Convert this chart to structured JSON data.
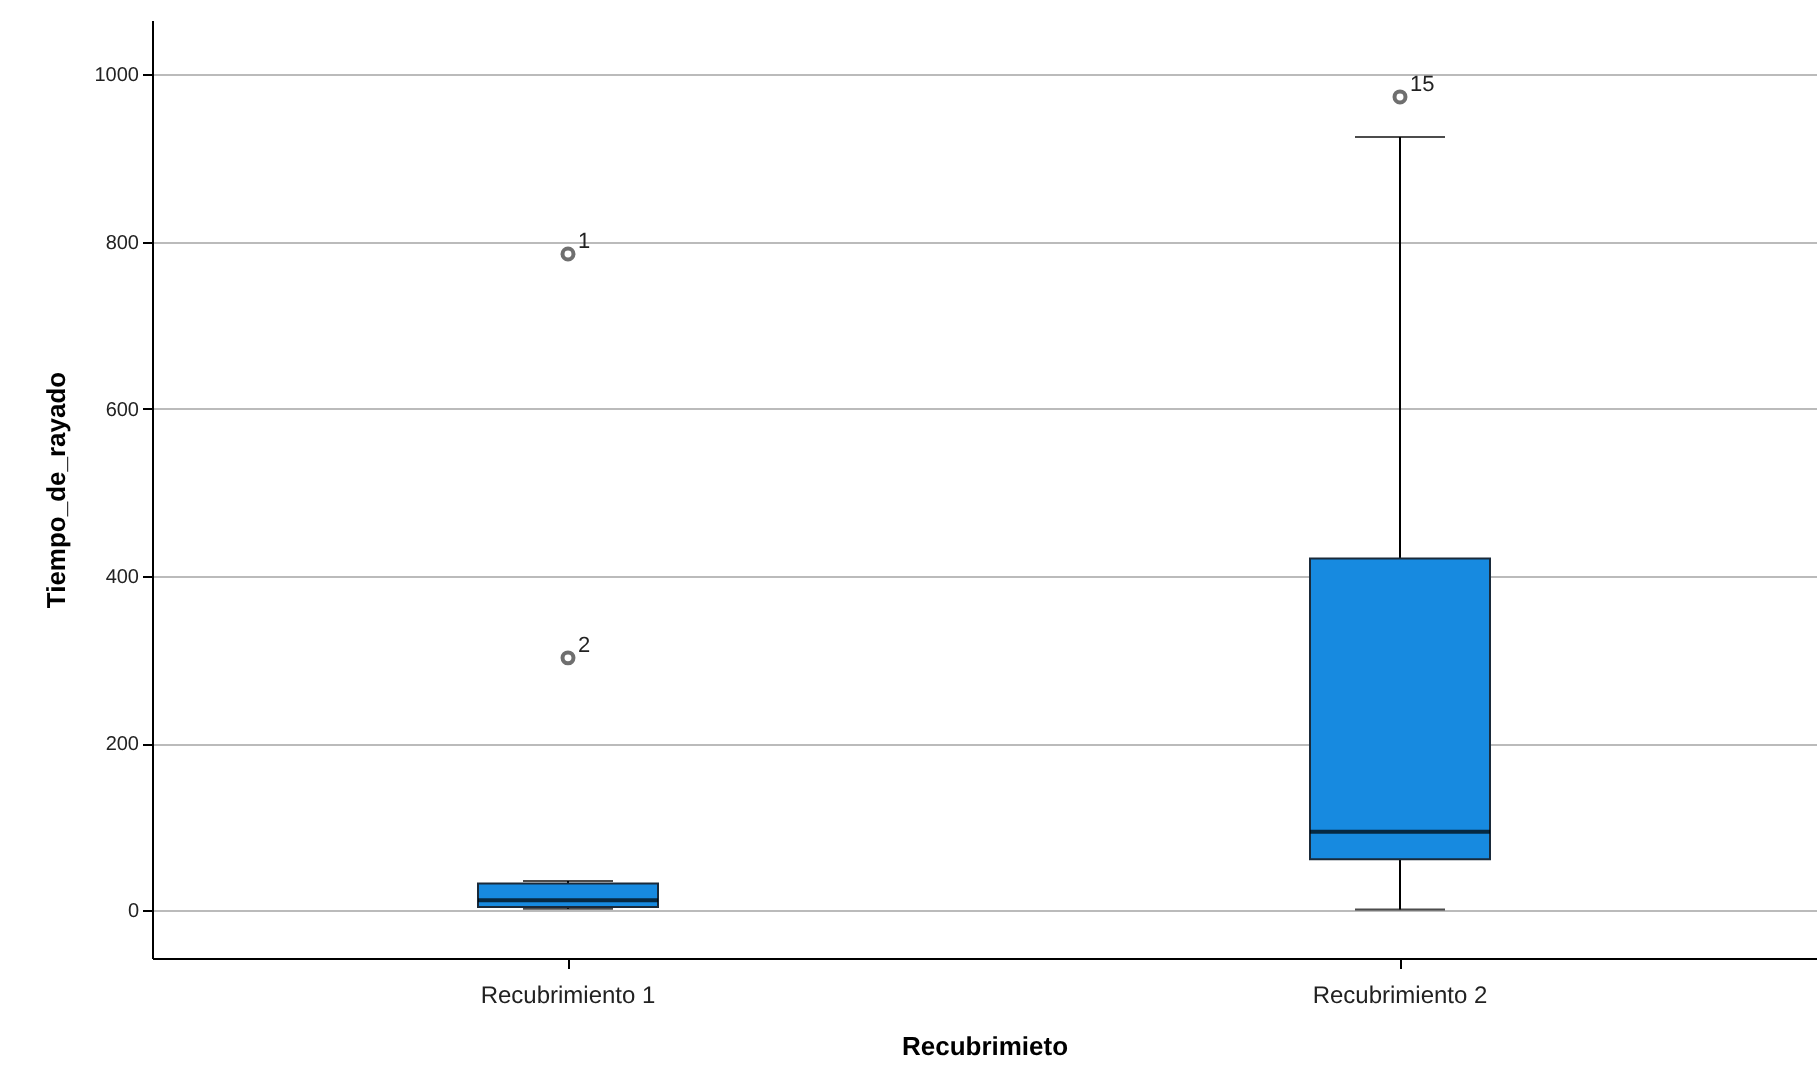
{
  "chart_data": {
    "type": "box",
    "xlabel": "Recubrimieto",
    "ylabel": "Tiempo_de_rayado",
    "categories": [
      "Recubrimiento 1",
      "Recubrimiento 2"
    ],
    "series": [
      {
        "color": "#178ae0",
        "boxes": [
          {
            "low": 2,
            "q1": 4,
            "median": 12,
            "q3": 32,
            "high": 35,
            "outliers": [
              785,
              302
            ]
          },
          {
            "low": 1,
            "q1": 61,
            "median": 94,
            "q3": 421,
            "high": 925,
            "outliers": [
              973
            ]
          }
        ]
      }
    ],
    "ylim": [
      -57,
      1065
    ],
    "yticks": [
      0,
      200,
      400,
      600,
      800,
      1000
    ],
    "grid": "y",
    "annotations": [
      "1",
      "2",
      "15"
    ]
  }
}
